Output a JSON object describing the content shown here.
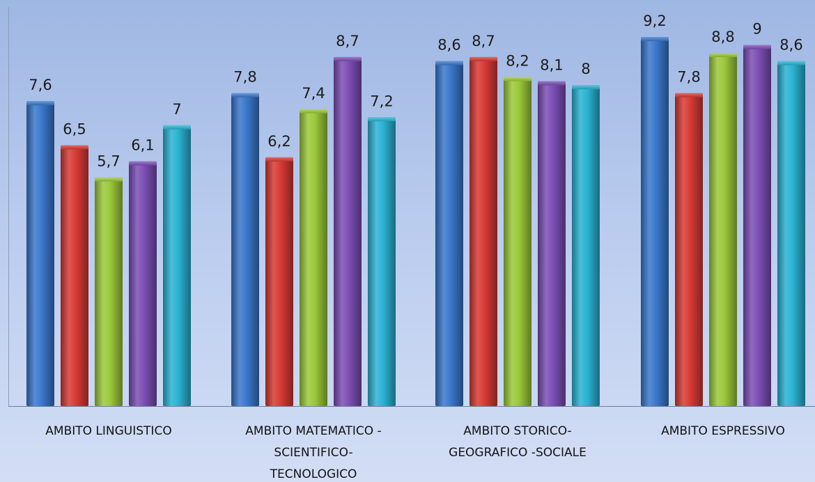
{
  "chart_data": {
    "type": "bar",
    "title": "",
    "xlabel": "",
    "ylabel": "",
    "ylim": [
      0,
      9.2
    ],
    "grid": false,
    "legend": "none",
    "categories": [
      [
        "AMBITO LINGUISTICO"
      ],
      [
        "AMBITO MATEMATICO -",
        "SCIENTIFICO-",
        "TECNOLOGICO"
      ],
      [
        "AMBITO STORICO-",
        "GEOGRAFICO -SOCIALE"
      ],
      [
        "AMBITO ESPRESSIVO"
      ]
    ],
    "series": [
      {
        "color": "#3a78cc",
        "values": [
          7.6,
          7.8,
          8.6,
          9.2
        ],
        "labels": [
          "7,6",
          "7,8",
          "8,6",
          "9,2"
        ]
      },
      {
        "color": "#d83a35",
        "values": [
          6.5,
          6.2,
          8.7,
          7.8
        ],
        "labels": [
          "6,5",
          "6,2",
          "8,7",
          "7,8"
        ]
      },
      {
        "color": "#9cc93a",
        "values": [
          5.7,
          7.4,
          8.2,
          8.8
        ],
        "labels": [
          "5,7",
          "7,4",
          "8,2",
          "8,8"
        ]
      },
      {
        "color": "#7c4fb5",
        "values": [
          6.1,
          8.7,
          8.1,
          9.0
        ],
        "labels": [
          "6,1",
          "8,7",
          "8,1",
          "9"
        ]
      },
      {
        "color": "#2bb3d3",
        "values": [
          7.0,
          7.2,
          8.0,
          8.6
        ],
        "labels": [
          "7",
          "7,2",
          "8",
          "8,6"
        ]
      }
    ]
  }
}
